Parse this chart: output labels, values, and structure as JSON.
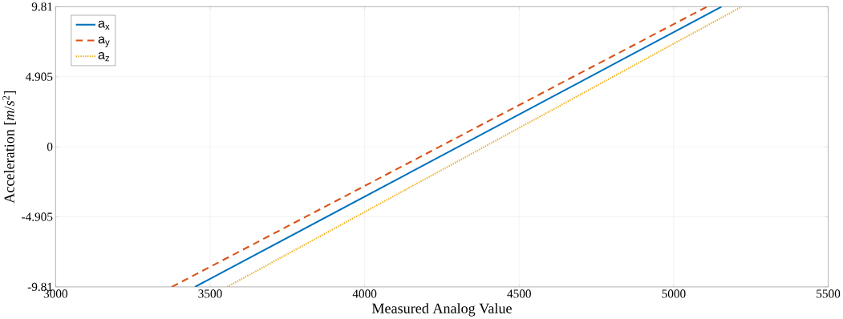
{
  "chart_data": {
    "type": "line",
    "xlabel": "Measured Analog Value",
    "ylabel": "Acceleration [*m*/*s*$^{2}$]",
    "xlim": [
      3000,
      5500
    ],
    "xticks": [
      3000,
      3500,
      4000,
      4500,
      5000,
      5500
    ],
    "ylim": [
      -9.81,
      9.81
    ],
    "yticks": [
      -9.81,
      -4.905,
      0,
      4.905,
      9.81
    ],
    "grid": true,
    "legend": "top left",
    "series": [
      {
        "name": "a$_{x}$",
        "color": "#0072bd",
        "line_style": "solid",
        "x": [
          3451,
          5155
        ],
        "values": [
          -9.81,
          9.81
        ]
      },
      {
        "name": "a$_{y}$",
        "color": "#d95319",
        "line_style": "dashed",
        "x": [
          3376,
          5108
        ],
        "values": [
          -9.81,
          9.81
        ]
      },
      {
        "name": "a$_{z}$",
        "color": "#edb120",
        "line_style": "dotted",
        "x": [
          3555,
          5220
        ],
        "values": [
          -9.81,
          9.81
        ]
      }
    ]
  }
}
